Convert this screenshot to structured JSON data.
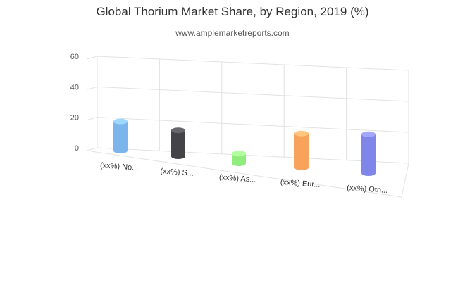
{
  "chart_data": {
    "type": "bar",
    "title": "Global Thorium Market Share, by Region, 2019 (%)",
    "subtitle": "www.amplemarketreports.com",
    "categories": [
      "(xx%) No...",
      "(xx%) S...",
      "(xx%) As...",
      "(xx%) Eur...",
      "(xx%) Oth..."
    ],
    "values": [
      18,
      16,
      6,
      21,
      24
    ],
    "colors": [
      "#7cb5ec",
      "#434348",
      "#90ed7d",
      "#f7a35c",
      "#8085e9"
    ],
    "ylim": [
      0,
      60
    ],
    "yticks": [
      0,
      20,
      40,
      60
    ],
    "grid": true,
    "legend": "none",
    "style": "3d-cylinder"
  }
}
